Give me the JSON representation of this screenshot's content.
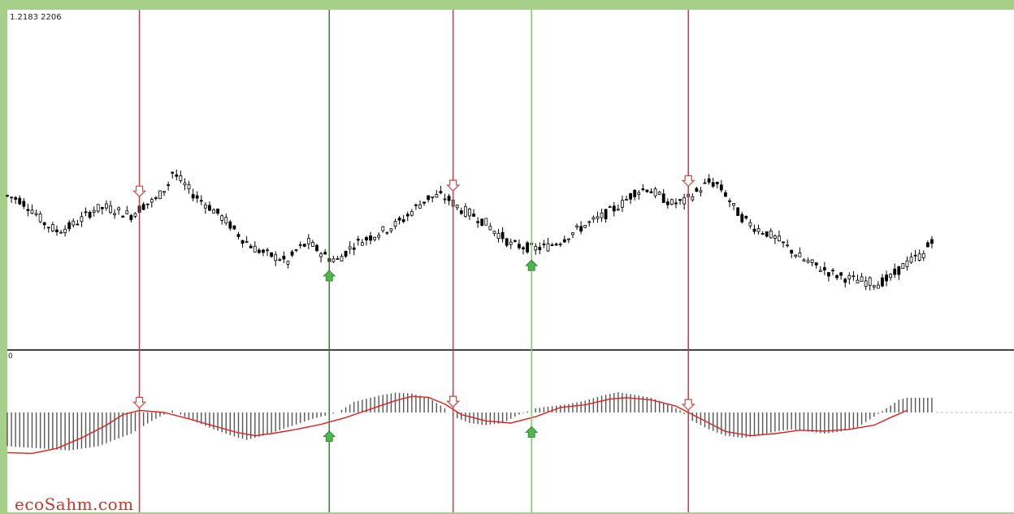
{
  "labels": {
    "price_label": "1.2183 2206",
    "osc_label": "0",
    "watermark": "ecoSahm.com"
  },
  "colors": {
    "frame": "#a6cf8a",
    "panel_bg": "#ffffff",
    "candle": "#000000",
    "histogram": "#555555",
    "signal_line": "#e02020",
    "sell_line": "#e03030",
    "buy_line_dark": "#2a8a2a",
    "buy_line_light": "#7ccf6a",
    "sell_arrow": "#e04040",
    "buy_arrow": "#4cb84c",
    "zero_line": "#bbbbbb"
  },
  "chart_data": [
    {
      "type": "candlestick",
      "title": "",
      "xlabel": "",
      "ylabel": "",
      "ylim": [
        0,
        100
      ],
      "close_path": [
        [
          0,
          62
        ],
        [
          3,
          60
        ],
        [
          6,
          55
        ],
        [
          9,
          48
        ],
        [
          12,
          44
        ],
        [
          15,
          46
        ],
        [
          18,
          50
        ],
        [
          21,
          55
        ],
        [
          24,
          56
        ],
        [
          27,
          54
        ],
        [
          30,
          52
        ],
        [
          33,
          57
        ],
        [
          36,
          60
        ],
        [
          39,
          68
        ],
        [
          40,
          74
        ],
        [
          42,
          70
        ],
        [
          45,
          63
        ],
        [
          48,
          58
        ],
        [
          51,
          53
        ],
        [
          54,
          47
        ],
        [
          57,
          40
        ],
        [
          60,
          35
        ],
        [
          63,
          32
        ],
        [
          66,
          30
        ],
        [
          68,
          28
        ],
        [
          70,
          34
        ],
        [
          73,
          38
        ],
        [
          76,
          33
        ],
        [
          78,
          30
        ],
        [
          80,
          29
        ],
        [
          82,
          33
        ],
        [
          84,
          37
        ],
        [
          87,
          40
        ],
        [
          90,
          43
        ],
        [
          93,
          46
        ],
        [
          96,
          50
        ],
        [
          99,
          56
        ],
        [
          102,
          61
        ],
        [
          105,
          62
        ],
        [
          107,
          60
        ],
        [
          110,
          55
        ],
        [
          113,
          52
        ],
        [
          116,
          48
        ],
        [
          118,
          44
        ],
        [
          120,
          41
        ],
        [
          122,
          37
        ],
        [
          125,
          36
        ],
        [
          128,
          35
        ],
        [
          131,
          36
        ],
        [
          134,
          39
        ],
        [
          137,
          43
        ],
        [
          140,
          47
        ],
        [
          143,
          50
        ],
        [
          146,
          54
        ],
        [
          149,
          58
        ],
        [
          152,
          64
        ],
        [
          155,
          66
        ],
        [
          158,
          62
        ],
        [
          161,
          58
        ],
        [
          164,
          59
        ],
        [
          167,
          64
        ],
        [
          170,
          69
        ],
        [
          172,
          68
        ],
        [
          174,
          63
        ],
        [
          176,
          56
        ],
        [
          178,
          51
        ],
        [
          181,
          46
        ],
        [
          184,
          43
        ],
        [
          187,
          39
        ],
        [
          190,
          34
        ],
        [
          193,
          29
        ],
        [
          195,
          27
        ],
        [
          197,
          25
        ],
        [
          200,
          22
        ],
        [
          203,
          20
        ],
        [
          205,
          19
        ],
        [
          208,
          18
        ],
        [
          211,
          17
        ],
        [
          214,
          20
        ],
        [
          217,
          26
        ],
        [
          220,
          30
        ],
        [
          222,
          32
        ],
        [
          224,
          40
        ],
        [
          225,
          45
        ]
      ]
    },
    {
      "type": "bar",
      "title": "",
      "xlabel": "",
      "ylabel": "",
      "ylim": [
        -100,
        100
      ],
      "histogram_path": [
        [
          0,
          -80
        ],
        [
          8,
          -85
        ],
        [
          15,
          -90
        ],
        [
          22,
          -80
        ],
        [
          30,
          -50
        ],
        [
          35,
          -20
        ],
        [
          38,
          -5
        ],
        [
          40,
          5
        ],
        [
          44,
          -15
        ],
        [
          50,
          -40
        ],
        [
          56,
          -60
        ],
        [
          58,
          -65
        ],
        [
          62,
          -55
        ],
        [
          68,
          -35
        ],
        [
          74,
          -15
        ],
        [
          78,
          -5
        ],
        [
          80,
          0
        ],
        [
          84,
          25
        ],
        [
          90,
          40
        ],
        [
          94,
          47
        ],
        [
          98,
          45
        ],
        [
          102,
          35
        ],
        [
          106,
          10
        ],
        [
          108,
          -10
        ],
        [
          112,
          -25
        ],
        [
          116,
          -30
        ],
        [
          120,
          -25
        ],
        [
          124,
          -5
        ],
        [
          128,
          10
        ],
        [
          132,
          15
        ],
        [
          136,
          20
        ],
        [
          140,
          28
        ],
        [
          144,
          40
        ],
        [
          148,
          48
        ],
        [
          152,
          42
        ],
        [
          156,
          35
        ],
        [
          160,
          20
        ],
        [
          163,
          5
        ],
        [
          166,
          -20
        ],
        [
          170,
          -40
        ],
        [
          174,
          -55
        ],
        [
          178,
          -60
        ],
        [
          182,
          -55
        ],
        [
          186,
          -45
        ],
        [
          190,
          -40
        ],
        [
          194,
          -45
        ],
        [
          198,
          -50
        ],
        [
          202,
          -45
        ],
        [
          206,
          -35
        ],
        [
          210,
          -10
        ],
        [
          213,
          10
        ],
        [
          216,
          30
        ],
        [
          218,
          35
        ]
      ],
      "signal_path": [
        [
          0,
          -95
        ],
        [
          6,
          -97
        ],
        [
          12,
          -85
        ],
        [
          18,
          -60
        ],
        [
          24,
          -30
        ],
        [
          28,
          -5
        ],
        [
          32,
          5
        ],
        [
          38,
          0
        ],
        [
          44,
          -15
        ],
        [
          50,
          -32
        ],
        [
          56,
          -48
        ],
        [
          60,
          -55
        ],
        [
          64,
          -50
        ],
        [
          70,
          -40
        ],
        [
          76,
          -28
        ],
        [
          82,
          -12
        ],
        [
          88,
          8
        ],
        [
          94,
          28
        ],
        [
          98,
          38
        ],
        [
          102,
          36
        ],
        [
          106,
          20
        ],
        [
          110,
          -5
        ],
        [
          116,
          -20
        ],
        [
          122,
          -25
        ],
        [
          128,
          -10
        ],
        [
          134,
          12
        ],
        [
          140,
          18
        ],
        [
          146,
          32
        ],
        [
          150,
          35
        ],
        [
          156,
          30
        ],
        [
          162,
          15
        ],
        [
          168,
          -15
        ],
        [
          174,
          -45
        ],
        [
          180,
          -55
        ],
        [
          186,
          -50
        ],
        [
          192,
          -42
        ],
        [
          198,
          -44
        ],
        [
          204,
          -40
        ],
        [
          210,
          -30
        ],
        [
          214,
          -12
        ],
        [
          218,
          5
        ]
      ]
    }
  ],
  "events": [
    {
      "type": "sell",
      "x": 32
    },
    {
      "type": "buy",
      "x": 78
    },
    {
      "type": "sell",
      "x": 108
    },
    {
      "type": "buy",
      "x": 127
    },
    {
      "type": "sell",
      "x": 165
    }
  ]
}
